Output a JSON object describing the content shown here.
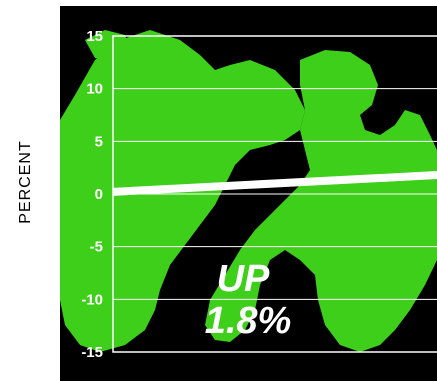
{
  "chart_data": {
    "type": "line",
    "title": "",
    "xlabel": "",
    "ylabel": "PERCENT",
    "ylim": [
      -15,
      15
    ],
    "yticks": [
      15,
      10,
      5,
      0,
      -5,
      -10,
      -15
    ],
    "series": [
      {
        "values": [
          0.2,
          1.8
        ]
      }
    ],
    "grid": true,
    "annotations": {
      "line1": "UP",
      "line2": "1.8%"
    },
    "colors": {
      "background": "#000000",
      "plot_fill": "#3ecf1a",
      "line": "#ffffff",
      "grid": "#ffffff"
    }
  }
}
